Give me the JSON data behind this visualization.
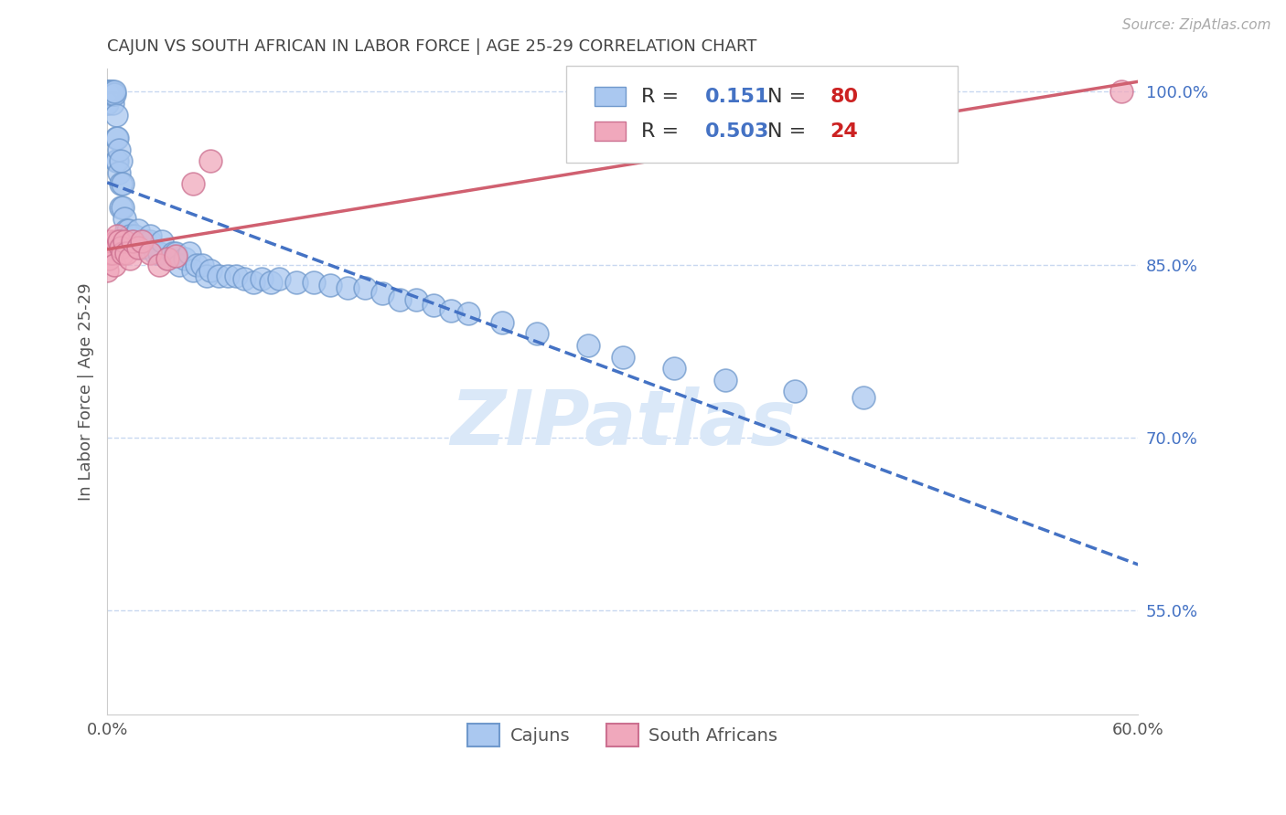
{
  "title": "CAJUN VS SOUTH AFRICAN IN LABOR FORCE | AGE 25-29 CORRELATION CHART",
  "source_text": "Source: ZipAtlas.com",
  "ylabel": "In Labor Force | Age 25-29",
  "xlim": [
    0.0,
    0.6
  ],
  "ylim": [
    0.46,
    1.02
  ],
  "ytick_positions": [
    1.0,
    0.85,
    0.7,
    0.55
  ],
  "ytick_labels": [
    "100.0%",
    "85.0%",
    "70.0%",
    "55.0%"
  ],
  "cajun_color": "#aac8f0",
  "cajun_edge_color": "#7099cc",
  "sa_color": "#f0a8bc",
  "sa_edge_color": "#cc7090",
  "cajun_line_color": "#4472c4",
  "sa_line_color": "#d06070",
  "cajun_R": 0.151,
  "cajun_N": 80,
  "sa_R": 0.503,
  "sa_N": 24,
  "background_color": "#ffffff",
  "grid_color": "#c8d8f0",
  "watermark_color": "#dae8f8",
  "r_color": "#4472c4",
  "n_color": "#cc2222",
  "cajun_x": [
    0.0,
    0.0,
    0.0,
    0.0,
    0.001,
    0.001,
    0.001,
    0.002,
    0.002,
    0.003,
    0.003,
    0.003,
    0.004,
    0.004,
    0.005,
    0.005,
    0.005,
    0.006,
    0.006,
    0.007,
    0.007,
    0.008,
    0.008,
    0.008,
    0.009,
    0.009,
    0.01,
    0.01,
    0.011,
    0.012,
    0.013,
    0.014,
    0.015,
    0.016,
    0.018,
    0.02,
    0.022,
    0.025,
    0.025,
    0.028,
    0.03,
    0.032,
    0.035,
    0.038,
    0.04,
    0.042,
    0.045,
    0.048,
    0.05,
    0.052,
    0.055,
    0.058,
    0.06,
    0.065,
    0.07,
    0.075,
    0.08,
    0.085,
    0.09,
    0.095,
    0.1,
    0.11,
    0.12,
    0.13,
    0.14,
    0.15,
    0.16,
    0.17,
    0.18,
    0.19,
    0.2,
    0.21,
    0.23,
    0.25,
    0.28,
    0.3,
    0.33,
    0.36,
    0.4,
    0.44
  ],
  "cajun_y": [
    0.99,
    0.99,
    1.0,
    1.0,
    0.998,
    0.998,
    1.0,
    0.998,
    1.0,
    0.99,
    0.998,
    1.0,
    0.998,
    1.0,
    0.94,
    0.96,
    0.98,
    0.94,
    0.96,
    0.93,
    0.95,
    0.9,
    0.92,
    0.94,
    0.9,
    0.92,
    0.87,
    0.89,
    0.88,
    0.88,
    0.875,
    0.87,
    0.87,
    0.875,
    0.88,
    0.865,
    0.87,
    0.87,
    0.875,
    0.86,
    0.86,
    0.87,
    0.855,
    0.86,
    0.86,
    0.85,
    0.855,
    0.86,
    0.845,
    0.85,
    0.85,
    0.84,
    0.845,
    0.84,
    0.84,
    0.84,
    0.838,
    0.835,
    0.838,
    0.835,
    0.838,
    0.835,
    0.835,
    0.832,
    0.83,
    0.83,
    0.825,
    0.82,
    0.82,
    0.815,
    0.81,
    0.808,
    0.8,
    0.79,
    0.78,
    0.77,
    0.76,
    0.75,
    0.74,
    0.735
  ],
  "sa_x": [
    0.0,
    0.001,
    0.002,
    0.002,
    0.003,
    0.004,
    0.005,
    0.006,
    0.007,
    0.008,
    0.009,
    0.01,
    0.011,
    0.013,
    0.015,
    0.018,
    0.02,
    0.025,
    0.03,
    0.035,
    0.04,
    0.05,
    0.06,
    0.59
  ],
  "sa_y": [
    0.845,
    0.855,
    0.86,
    0.87,
    0.86,
    0.85,
    0.87,
    0.875,
    0.87,
    0.865,
    0.86,
    0.87,
    0.86,
    0.855,
    0.87,
    0.865,
    0.87,
    0.86,
    0.85,
    0.855,
    0.858,
    0.92,
    0.94,
    1.0
  ]
}
